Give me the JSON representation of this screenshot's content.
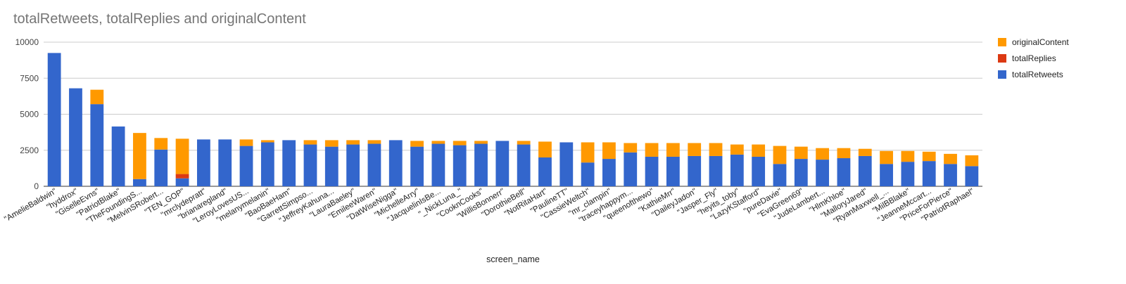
{
  "chart_data": {
    "type": "bar",
    "stacked": true,
    "title": "totalRetweets, totalReplies and originalContent",
    "xlabel": "screen_name",
    "ylabel": "",
    "ylim": [
      0,
      10000
    ],
    "yticks": [
      "0",
      "2500",
      "5000",
      "7500",
      "10000"
    ],
    "grid": true,
    "legend_position": "right",
    "categories": [
      "\"AmelieBaldwin\"",
      "\"hyddrox\"",
      "\"GiselleEvns\"",
      "\"PatriotBlake\"",
      "\"TheFoundingS...",
      "\"MelvinSRobert...",
      "\"TEN_GOP\"",
      "\"mrclydepratt\"",
      "\"brianaregland\"",
      "\"LeroyLovesUS...",
      "\"melanymelanin\"",
      "\"BaoBaeHam\"",
      "\"GarrettSimpso...",
      "\"JeffreyKahuna...",
      "\"LauraBaeley\"",
      "\"EmileeWaren\"",
      "\"DatWiseNigga\"",
      "\"MichelleArry\"",
      "\"JacquelinIsBe...",
      "\"_NickLuna_\"",
      "\"CooknCooks\"",
      "\"WillisBonnerr\"",
      "\"DorothieBell\"",
      "\"NotRitaHart\"",
      "\"PaulineTT\"",
      "\"CassieWeltch\"",
      "\"mr_clampin\"",
      "\"traceyhappym...",
      "\"queenofthewo\"",
      "\"KathieMrr\"",
      "\"DaileyJadon\"",
      "\"Jasper_Fly\"",
      "\"heyits_toby\"",
      "\"LazyKStafford\"",
      "\"pureDavie\"",
      "\"EvaGreen69\"",
      "\"JudeLambert...",
      "\"HlmKhloe\"",
      "\"MalloryJared\"",
      "\"RyanMaxwell_...",
      "\"MilBBlake\"",
      "\"JeanneMccart...",
      "\"PriceForPierce\"",
      "\"PatriotRaphael\""
    ],
    "series": [
      {
        "name": "totalRetweets",
        "color": "#3366cc",
        "values": [
          9250,
          6800,
          5700,
          4150,
          500,
          2550,
          550,
          3250,
          3250,
          2800,
          3050,
          3200,
          2900,
          2750,
          2900,
          2950,
          3200,
          2750,
          2950,
          2850,
          2950,
          3150,
          2900,
          2000,
          3050,
          1650,
          1900,
          2350,
          2050,
          2050,
          2100,
          2100,
          2200,
          2050,
          1550,
          1900,
          1850,
          1950,
          2100,
          1550,
          1700,
          1750,
          1550,
          1400
        ]
      },
      {
        "name": "totalReplies",
        "color": "#dc3912",
        "values": [
          0,
          0,
          0,
          0,
          0,
          0,
          300,
          0,
          0,
          0,
          0,
          0,
          0,
          0,
          0,
          0,
          0,
          0,
          0,
          0,
          0,
          0,
          0,
          0,
          0,
          0,
          0,
          0,
          0,
          0,
          0,
          0,
          0,
          0,
          0,
          0,
          0,
          0,
          0,
          0,
          0,
          0,
          0,
          0
        ]
      },
      {
        "name": "originalContent",
        "color": "#ff9900",
        "values": [
          0,
          0,
          1000,
          0,
          3200,
          800,
          2450,
          0,
          0,
          450,
          150,
          0,
          300,
          450,
          300,
          250,
          0,
          400,
          200,
          300,
          200,
          0,
          250,
          1100,
          0,
          1400,
          1150,
          650,
          950,
          950,
          900,
          900,
          700,
          850,
          1250,
          850,
          800,
          700,
          500,
          900,
          750,
          650,
          700,
          750
        ]
      }
    ],
    "legend_order": [
      "originalContent",
      "totalReplies",
      "totalRetweets"
    ]
  }
}
